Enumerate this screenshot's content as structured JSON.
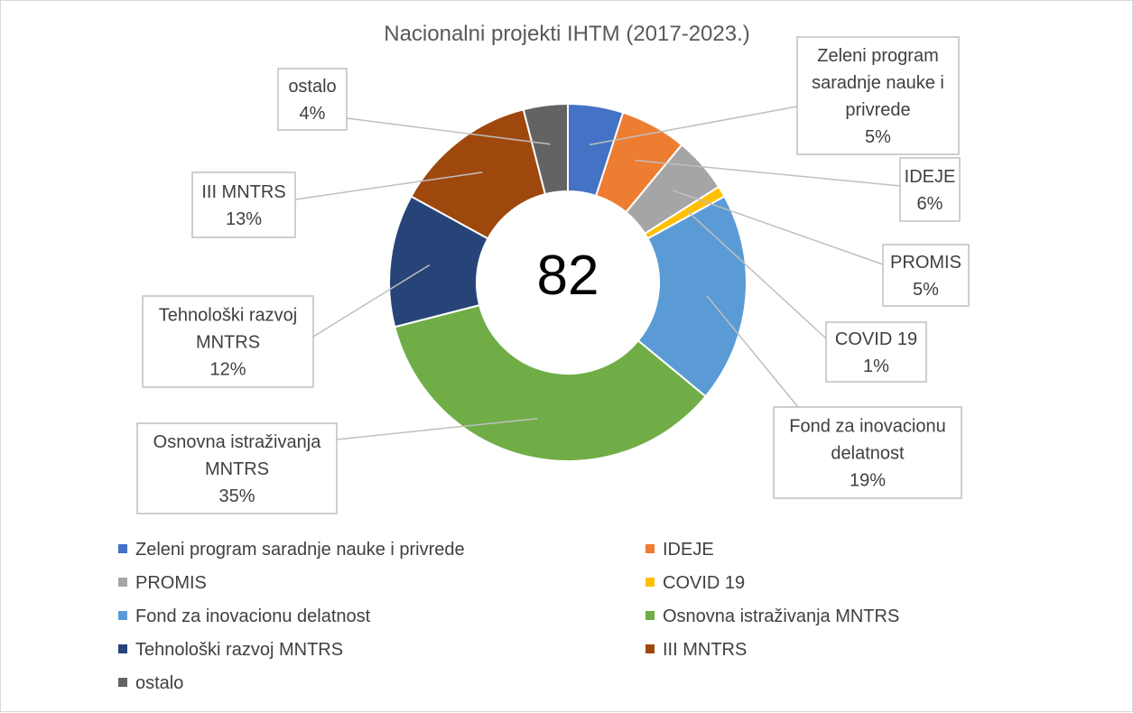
{
  "chart_data": {
    "type": "donut",
    "title": "Nacionalni projekti IHTM (2017-2023.)",
    "center_label": "82",
    "categories": [
      "Zeleni program saradnje nauke i privrede",
      "IDEJE",
      "PROMIS",
      "COVID 19",
      "Fond za inovacionu delatnost",
      "Osnovna istraživanja MNTRS",
      "Tehnološki razvoj MNTRS",
      "III MNTRS",
      "ostalo"
    ],
    "values": [
      5,
      6,
      5,
      1,
      19,
      35,
      12,
      13,
      4
    ],
    "value_labels": [
      "5%",
      "6%",
      "5%",
      "1%",
      "19%",
      "35%",
      "12%",
      "13%",
      "4%"
    ],
    "callout_lines": [
      [
        "Zeleni program",
        "saradnje nauke i",
        "privrede",
        "5%"
      ],
      [
        "IDEJE",
        "6%"
      ],
      [
        "PROMIS",
        "5%"
      ],
      [
        "COVID 19",
        "1%"
      ],
      [
        "Fond za inovacionu",
        "delatnost",
        "19%"
      ],
      [
        "Osnovna istraživanja",
        "MNTRS",
        "35%"
      ],
      [
        "Tehnološki razvoj",
        "MNTRS",
        "12%"
      ],
      [
        "III MNTRS",
        "13%"
      ],
      [
        "ostalo",
        "4%"
      ]
    ],
    "colors": [
      "#4472C4",
      "#ED7D31",
      "#A5A5A5",
      "#FFC000",
      "#5B9BD5",
      "#70AD47",
      "#264478",
      "#9E480E",
      "#636363"
    ],
    "legend": "bottom"
  }
}
